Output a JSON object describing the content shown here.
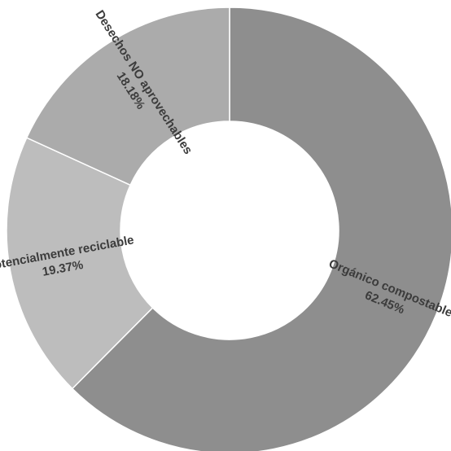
{
  "chart_data": {
    "type": "pie",
    "donut": true,
    "categories": [
      "Orgánico compostable",
      "Potencialmente reciclable",
      "Desechos NO aprovechables"
    ],
    "values": [
      62.45,
      19.37,
      18.18
    ],
    "value_labels": [
      "62.45%",
      "19.37%",
      "18.18%"
    ],
    "colors": [
      "#8e8e8e",
      "#bdbdbd",
      "#ababab"
    ]
  }
}
